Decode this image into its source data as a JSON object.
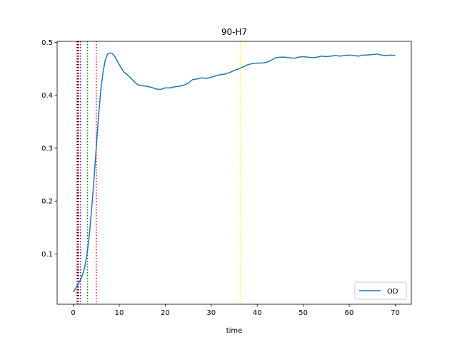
{
  "chart_data": {
    "type": "line",
    "title": "90-H7",
    "xlabel": "time",
    "ylabel": "",
    "xlim": [
      -3.5,
      73.5
    ],
    "ylim": [
      0.005,
      0.502
    ],
    "xticks": [
      0,
      10,
      20,
      30,
      40,
      50,
      60,
      70
    ],
    "yticks": [
      0.1,
      0.2,
      0.3,
      0.4,
      0.5
    ],
    "legend": {
      "position": "lower-right",
      "entries": [
        "OD"
      ]
    },
    "grid": false,
    "series": [
      {
        "name": "OD",
        "color": "#1f77b4",
        "x": [
          0,
          0.5,
          1,
          1.5,
          2,
          2.5,
          3,
          3.5,
          4,
          4.5,
          5,
          5.5,
          6,
          6.5,
          7,
          7.5,
          8,
          8.5,
          9,
          9.5,
          10,
          11,
          12,
          13,
          14,
          15,
          16,
          17,
          18,
          19,
          20,
          21,
          22,
          23,
          24,
          25,
          26,
          27,
          28,
          29,
          30,
          31,
          32,
          33,
          34,
          35,
          36,
          37,
          38,
          39,
          40,
          41,
          42,
          43,
          44,
          45,
          46,
          47,
          48,
          49,
          50,
          51,
          52,
          53,
          54,
          55,
          56,
          57,
          58,
          59,
          60,
          61,
          62,
          63,
          64,
          65,
          66,
          67,
          68,
          69,
          70
        ],
        "y": [
          0.028,
          0.035,
          0.042,
          0.05,
          0.06,
          0.075,
          0.1,
          0.135,
          0.185,
          0.24,
          0.3,
          0.36,
          0.41,
          0.445,
          0.468,
          0.478,
          0.48,
          0.479,
          0.474,
          0.466,
          0.458,
          0.444,
          0.437,
          0.428,
          0.42,
          0.418,
          0.417,
          0.415,
          0.412,
          0.411,
          0.414,
          0.414,
          0.416,
          0.417,
          0.419,
          0.423,
          0.43,
          0.431,
          0.433,
          0.432,
          0.434,
          0.437,
          0.439,
          0.44,
          0.443,
          0.447,
          0.45,
          0.454,
          0.458,
          0.46,
          0.461,
          0.461,
          0.462,
          0.466,
          0.471,
          0.472,
          0.472,
          0.471,
          0.47,
          0.472,
          0.473,
          0.472,
          0.471,
          0.472,
          0.474,
          0.473,
          0.474,
          0.475,
          0.474,
          0.475,
          0.476,
          0.475,
          0.474,
          0.476,
          0.476,
          0.477,
          0.478,
          0.476,
          0.475,
          0.476,
          0.475
        ]
      }
    ],
    "vlines": [
      {
        "x": 0.8,
        "color": "#ff0000"
      },
      {
        "x": 1.0,
        "color": "#000000"
      },
      {
        "x": 1.2,
        "color": "#800080"
      },
      {
        "x": 1.6,
        "color": "#800080"
      },
      {
        "x": 3.1,
        "color": "#008000"
      },
      {
        "x": 5.0,
        "color": "#ff0000"
      },
      {
        "x": 36.3,
        "color": "#ffff00"
      }
    ]
  }
}
